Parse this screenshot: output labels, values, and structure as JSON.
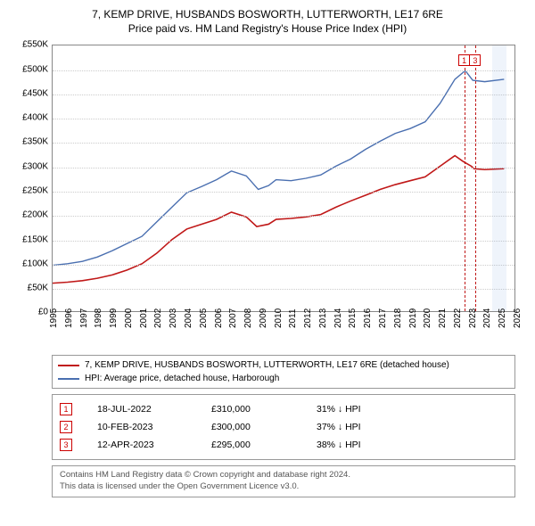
{
  "title": {
    "line1": "7, KEMP DRIVE, HUSBANDS BOSWORTH, LUTTERWORTH, LE17 6RE",
    "line2": "Price paid vs. HM Land Registry's House Price Index (HPI)"
  },
  "chart": {
    "type": "line",
    "background_color": "#ffffff",
    "grid_color": "#cccccc",
    "border_color": "#888888",
    "x": {
      "min": 1995,
      "max": 2026,
      "tick_step": 1,
      "label_fontsize": 10,
      "label_rotation": -90
    },
    "y": {
      "min": 0,
      "max": 550000,
      "tick_step": 50000,
      "tick_labels": [
        "£0",
        "£50K",
        "£100K",
        "£150K",
        "£200K",
        "£250K",
        "£300K",
        "£350K",
        "£400K",
        "£450K",
        "£500K",
        "£550K"
      ],
      "label_fontsize": 10
    },
    "highlight_band": {
      "x_from": 2024.4,
      "x_to": 2025.35,
      "fill": "rgba(100,150,220,0.10)"
    },
    "series": [
      {
        "name": "property",
        "label": "7, KEMP DRIVE, HUSBANDS BOSWORTH, LUTTERWORTH, LE17 6RE (detached house)",
        "color": "#c01818",
        "line_width": 1.6,
        "points": [
          [
            1995.0,
            58000
          ],
          [
            1996.0,
            60000
          ],
          [
            1997.0,
            63000
          ],
          [
            1998.0,
            68000
          ],
          [
            1999.0,
            75000
          ],
          [
            2000.0,
            85000
          ],
          [
            2001.0,
            98000
          ],
          [
            2002.0,
            120000
          ],
          [
            2003.0,
            148000
          ],
          [
            2004.0,
            170000
          ],
          [
            2005.0,
            180000
          ],
          [
            2006.0,
            190000
          ],
          [
            2007.0,
            205000
          ],
          [
            2008.0,
            195000
          ],
          [
            2008.7,
            175000
          ],
          [
            2009.5,
            180000
          ],
          [
            2010.0,
            190000
          ],
          [
            2011.0,
            192000
          ],
          [
            2012.0,
            195000
          ],
          [
            2013.0,
            200000
          ],
          [
            2014.0,
            215000
          ],
          [
            2015.0,
            228000
          ],
          [
            2016.0,
            240000
          ],
          [
            2017.0,
            252000
          ],
          [
            2018.0,
            262000
          ],
          [
            2019.0,
            270000
          ],
          [
            2020.0,
            278000
          ],
          [
            2021.0,
            300000
          ],
          [
            2022.0,
            322000
          ],
          [
            2022.55,
            310000
          ],
          [
            2023.11,
            300000
          ],
          [
            2023.28,
            295000
          ],
          [
            2024.0,
            293000
          ],
          [
            2025.3,
            295000
          ]
        ]
      },
      {
        "name": "hpi",
        "label": "HPI: Average price, detached house, Harborough",
        "color": "#4a6fb0",
        "line_width": 1.4,
        "points": [
          [
            1995.0,
            95000
          ],
          [
            1996.0,
            98000
          ],
          [
            1997.0,
            103000
          ],
          [
            1998.0,
            112000
          ],
          [
            1999.0,
            125000
          ],
          [
            2000.0,
            140000
          ],
          [
            2001.0,
            155000
          ],
          [
            2002.0,
            185000
          ],
          [
            2003.0,
            215000
          ],
          [
            2004.0,
            245000
          ],
          [
            2005.0,
            258000
          ],
          [
            2006.0,
            272000
          ],
          [
            2007.0,
            290000
          ],
          [
            2008.0,
            280000
          ],
          [
            2008.8,
            252000
          ],
          [
            2009.5,
            260000
          ],
          [
            2010.0,
            272000
          ],
          [
            2011.0,
            270000
          ],
          [
            2012.0,
            275000
          ],
          [
            2013.0,
            282000
          ],
          [
            2014.0,
            300000
          ],
          [
            2015.0,
            315000
          ],
          [
            2016.0,
            335000
          ],
          [
            2017.0,
            352000
          ],
          [
            2018.0,
            368000
          ],
          [
            2019.0,
            378000
          ],
          [
            2020.0,
            392000
          ],
          [
            2021.0,
            430000
          ],
          [
            2022.0,
            480000
          ],
          [
            2022.7,
            498000
          ],
          [
            2023.2,
            478000
          ],
          [
            2024.0,
            475000
          ],
          [
            2025.3,
            480000
          ]
        ]
      }
    ],
    "sale_markers": [
      {
        "n": "1",
        "x": 2022.55,
        "label_y": 532000
      },
      {
        "n": "3",
        "x": 2023.28,
        "label_y": 532000
      }
    ],
    "marker_line_color": "#c01818",
    "marker_box_border": "#c01818",
    "marker_box_text_color": "#c01818"
  },
  "legend": {
    "border_color": "#999999",
    "fontsize": 10,
    "items": [
      {
        "color": "#c01818",
        "label": "7, KEMP DRIVE, HUSBANDS BOSWORTH, LUTTERWORTH, LE17 6RE (detached house)"
      },
      {
        "color": "#4a6fb0",
        "label": "HPI: Average price, detached house, Harborough"
      }
    ]
  },
  "sales": {
    "border_color": "#999999",
    "rows": [
      {
        "n": "1",
        "date": "18-JUL-2022",
        "price": "£310,000",
        "delta": "31% ↓ HPI"
      },
      {
        "n": "2",
        "date": "10-FEB-2023",
        "price": "£300,000",
        "delta": "37% ↓ HPI"
      },
      {
        "n": "3",
        "date": "12-APR-2023",
        "price": "£295,000",
        "delta": "38% ↓ HPI"
      }
    ]
  },
  "attribution": {
    "line1": "Contains HM Land Registry data © Crown copyright and database right 2024.",
    "line2": "This data is licensed under the Open Government Licence v3.0."
  }
}
